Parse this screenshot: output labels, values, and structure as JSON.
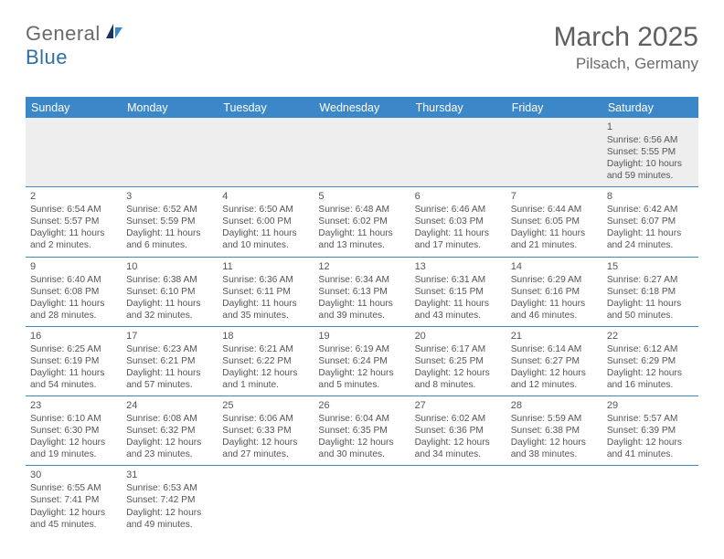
{
  "brand": {
    "part1": "General",
    "part2": "Blue"
  },
  "title": "March 2025",
  "location": "Pilsach, Germany",
  "colors": {
    "header_bg": "#3c87c8",
    "header_text": "#ffffff",
    "body_text": "#555555",
    "empty_bg": "#eeeeee",
    "border": "#3c87c8",
    "brand_gray": "#6a6a6a",
    "brand_blue": "#2f6fa8",
    "page_bg": "#ffffff"
  },
  "typography": {
    "title_fontsize": 30,
    "location_fontsize": 17,
    "dayhead_fontsize": 12.5,
    "cell_fontsize": 10.2,
    "daynum_fontsize": 11
  },
  "day_headers": [
    "Sunday",
    "Monday",
    "Tuesday",
    "Wednesday",
    "Thursday",
    "Friday",
    "Saturday"
  ],
  "weeks": [
    [
      null,
      null,
      null,
      null,
      null,
      null,
      {
        "n": "1",
        "sr": "Sunrise: 6:56 AM",
        "ss": "Sunset: 5:55 PM",
        "dl1": "Daylight: 10 hours",
        "dl2": "and 59 minutes."
      }
    ],
    [
      {
        "n": "2",
        "sr": "Sunrise: 6:54 AM",
        "ss": "Sunset: 5:57 PM",
        "dl1": "Daylight: 11 hours",
        "dl2": "and 2 minutes."
      },
      {
        "n": "3",
        "sr": "Sunrise: 6:52 AM",
        "ss": "Sunset: 5:59 PM",
        "dl1": "Daylight: 11 hours",
        "dl2": "and 6 minutes."
      },
      {
        "n": "4",
        "sr": "Sunrise: 6:50 AM",
        "ss": "Sunset: 6:00 PM",
        "dl1": "Daylight: 11 hours",
        "dl2": "and 10 minutes."
      },
      {
        "n": "5",
        "sr": "Sunrise: 6:48 AM",
        "ss": "Sunset: 6:02 PM",
        "dl1": "Daylight: 11 hours",
        "dl2": "and 13 minutes."
      },
      {
        "n": "6",
        "sr": "Sunrise: 6:46 AM",
        "ss": "Sunset: 6:03 PM",
        "dl1": "Daylight: 11 hours",
        "dl2": "and 17 minutes."
      },
      {
        "n": "7",
        "sr": "Sunrise: 6:44 AM",
        "ss": "Sunset: 6:05 PM",
        "dl1": "Daylight: 11 hours",
        "dl2": "and 21 minutes."
      },
      {
        "n": "8",
        "sr": "Sunrise: 6:42 AM",
        "ss": "Sunset: 6:07 PM",
        "dl1": "Daylight: 11 hours",
        "dl2": "and 24 minutes."
      }
    ],
    [
      {
        "n": "9",
        "sr": "Sunrise: 6:40 AM",
        "ss": "Sunset: 6:08 PM",
        "dl1": "Daylight: 11 hours",
        "dl2": "and 28 minutes."
      },
      {
        "n": "10",
        "sr": "Sunrise: 6:38 AM",
        "ss": "Sunset: 6:10 PM",
        "dl1": "Daylight: 11 hours",
        "dl2": "and 32 minutes."
      },
      {
        "n": "11",
        "sr": "Sunrise: 6:36 AM",
        "ss": "Sunset: 6:11 PM",
        "dl1": "Daylight: 11 hours",
        "dl2": "and 35 minutes."
      },
      {
        "n": "12",
        "sr": "Sunrise: 6:34 AM",
        "ss": "Sunset: 6:13 PM",
        "dl1": "Daylight: 11 hours",
        "dl2": "and 39 minutes."
      },
      {
        "n": "13",
        "sr": "Sunrise: 6:31 AM",
        "ss": "Sunset: 6:15 PM",
        "dl1": "Daylight: 11 hours",
        "dl2": "and 43 minutes."
      },
      {
        "n": "14",
        "sr": "Sunrise: 6:29 AM",
        "ss": "Sunset: 6:16 PM",
        "dl1": "Daylight: 11 hours",
        "dl2": "and 46 minutes."
      },
      {
        "n": "15",
        "sr": "Sunrise: 6:27 AM",
        "ss": "Sunset: 6:18 PM",
        "dl1": "Daylight: 11 hours",
        "dl2": "and 50 minutes."
      }
    ],
    [
      {
        "n": "16",
        "sr": "Sunrise: 6:25 AM",
        "ss": "Sunset: 6:19 PM",
        "dl1": "Daylight: 11 hours",
        "dl2": "and 54 minutes."
      },
      {
        "n": "17",
        "sr": "Sunrise: 6:23 AM",
        "ss": "Sunset: 6:21 PM",
        "dl1": "Daylight: 11 hours",
        "dl2": "and 57 minutes."
      },
      {
        "n": "18",
        "sr": "Sunrise: 6:21 AM",
        "ss": "Sunset: 6:22 PM",
        "dl1": "Daylight: 12 hours",
        "dl2": "and 1 minute."
      },
      {
        "n": "19",
        "sr": "Sunrise: 6:19 AM",
        "ss": "Sunset: 6:24 PM",
        "dl1": "Daylight: 12 hours",
        "dl2": "and 5 minutes."
      },
      {
        "n": "20",
        "sr": "Sunrise: 6:17 AM",
        "ss": "Sunset: 6:25 PM",
        "dl1": "Daylight: 12 hours",
        "dl2": "and 8 minutes."
      },
      {
        "n": "21",
        "sr": "Sunrise: 6:14 AM",
        "ss": "Sunset: 6:27 PM",
        "dl1": "Daylight: 12 hours",
        "dl2": "and 12 minutes."
      },
      {
        "n": "22",
        "sr": "Sunrise: 6:12 AM",
        "ss": "Sunset: 6:29 PM",
        "dl1": "Daylight: 12 hours",
        "dl2": "and 16 minutes."
      }
    ],
    [
      {
        "n": "23",
        "sr": "Sunrise: 6:10 AM",
        "ss": "Sunset: 6:30 PM",
        "dl1": "Daylight: 12 hours",
        "dl2": "and 19 minutes."
      },
      {
        "n": "24",
        "sr": "Sunrise: 6:08 AM",
        "ss": "Sunset: 6:32 PM",
        "dl1": "Daylight: 12 hours",
        "dl2": "and 23 minutes."
      },
      {
        "n": "25",
        "sr": "Sunrise: 6:06 AM",
        "ss": "Sunset: 6:33 PM",
        "dl1": "Daylight: 12 hours",
        "dl2": "and 27 minutes."
      },
      {
        "n": "26",
        "sr": "Sunrise: 6:04 AM",
        "ss": "Sunset: 6:35 PM",
        "dl1": "Daylight: 12 hours",
        "dl2": "and 30 minutes."
      },
      {
        "n": "27",
        "sr": "Sunrise: 6:02 AM",
        "ss": "Sunset: 6:36 PM",
        "dl1": "Daylight: 12 hours",
        "dl2": "and 34 minutes."
      },
      {
        "n": "28",
        "sr": "Sunrise: 5:59 AM",
        "ss": "Sunset: 6:38 PM",
        "dl1": "Daylight: 12 hours",
        "dl2": "and 38 minutes."
      },
      {
        "n": "29",
        "sr": "Sunrise: 5:57 AM",
        "ss": "Sunset: 6:39 PM",
        "dl1": "Daylight: 12 hours",
        "dl2": "and 41 minutes."
      }
    ],
    [
      {
        "n": "30",
        "sr": "Sunrise: 6:55 AM",
        "ss": "Sunset: 7:41 PM",
        "dl1": "Daylight: 12 hours",
        "dl2": "and 45 minutes."
      },
      {
        "n": "31",
        "sr": "Sunrise: 6:53 AM",
        "ss": "Sunset: 7:42 PM",
        "dl1": "Daylight: 12 hours",
        "dl2": "and 49 minutes."
      },
      null,
      null,
      null,
      null,
      null
    ]
  ]
}
